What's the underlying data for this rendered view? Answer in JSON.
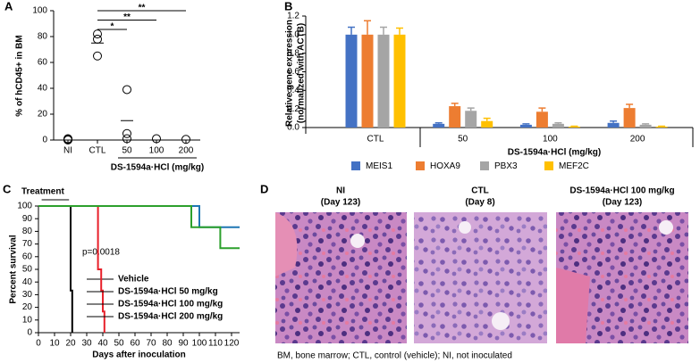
{
  "panel_labels": [
    "A",
    "B",
    "C",
    "D"
  ],
  "chart_data": [
    {
      "type": "dot",
      "y_label": "% of hCD45+ in BM",
      "x_label": "DS-1594a·HCl (mg/kg)",
      "categories": [
        "NI",
        "CTL",
        "50",
        "100",
        "200"
      ],
      "groups": [
        {
          "values": [
            0,
            1,
            0.5
          ]
        },
        {
          "values": [
            82,
            78,
            65
          ],
          "mean": 75
        },
        {
          "values": [
            39,
            5,
            1
          ],
          "mean": 15
        },
        {
          "values": [
            1
          ]
        },
        {
          "values": [
            0.5
          ]
        }
      ],
      "color": "#000000",
      "ylim": [
        0,
        100
      ],
      "yticks": [
        0,
        20,
        40,
        60,
        80,
        100
      ],
      "significance": [
        {
          "from": "CTL",
          "to": "50",
          "label": "*"
        },
        {
          "from": "CTL",
          "to": "100",
          "label": "**"
        },
        {
          "from": "CTL",
          "to": "200",
          "label": "**"
        }
      ]
    },
    {
      "type": "bar",
      "y_label": [
        "Relative gene expression",
        "(normalized with ACTB)"
      ],
      "x_label": "DS-1594a·HCl (mg/kg)",
      "categories": [
        "CTL",
        "50",
        "100",
        "200"
      ],
      "series": [
        {
          "name": "MEIS1",
          "color": "#4472c4",
          "values": [
            1.0,
            0.04,
            0.03,
            0.05
          ],
          "errors": [
            0.08,
            0.01,
            0.01,
            0.02
          ]
        },
        {
          "name": "HOXA9",
          "color": "#ed7d31",
          "values": [
            1.0,
            0.23,
            0.17,
            0.21
          ],
          "errors": [
            0.15,
            0.03,
            0.04,
            0.04
          ]
        },
        {
          "name": "PBX3",
          "color": "#a5a5a5",
          "values": [
            1.0,
            0.18,
            0.04,
            0.03
          ],
          "errors": [
            0.08,
            0.03,
            0.01,
            0.01
          ]
        },
        {
          "name": "MEF2C",
          "color": "#ffc000",
          "values": [
            1.0,
            0.07,
            0.01,
            0.01
          ],
          "errors": [
            0.07,
            0.03,
            0.005,
            0.005
          ]
        }
      ],
      "ylim": [
        0,
        1.2
      ],
      "yticks": [
        {
          "value": 0,
          "label": "0.0"
        },
        0.2,
        0.4,
        0.6,
        0.8,
        {
          "value": 1,
          "label": "1.0"
        },
        1.2
      ]
    },
    {
      "type": "step",
      "y_label": "Percent survival",
      "x_label": "Days after inoculation",
      "treatment": {
        "label": "Treatment",
        "start": 2,
        "end": 19,
        "color": "#ed7d31"
      },
      "annotation": "p=0.0018",
      "series": [
        {
          "name": "Vehicle",
          "color": "#000000",
          "x": [
            0,
            20,
            20,
            21,
            21
          ],
          "values": [
            100,
            100,
            33.3,
            33.3,
            0
          ]
        },
        {
          "name": "DS-1594a·HCl 50 mg/kg",
          "color": "#e8202a",
          "x": [
            0,
            37,
            37,
            39,
            39,
            40,
            40,
            41,
            41
          ],
          "values": [
            100,
            100,
            50,
            50,
            33.3,
            33.3,
            16.7,
            16.7,
            0
          ]
        },
        {
          "name": "DS-1594a·HCl 100 mg/kg",
          "color": "#1f77b4",
          "x": [
            0,
            100,
            100,
            125
          ],
          "values": [
            100,
            100,
            83.3,
            83.3
          ]
        },
        {
          "name": "DS-1594a·HCl 200 mg/kg",
          "color": "#2ca02c",
          "x": [
            0,
            95,
            95,
            113,
            113,
            125
          ],
          "values": [
            100,
            100,
            83.3,
            83.3,
            66.7,
            66.7
          ]
        }
      ],
      "xlim": [
        0,
        125
      ],
      "xticks": [
        0,
        10,
        20,
        30,
        40,
        50,
        60,
        70,
        80,
        90,
        100,
        110,
        120
      ],
      "ylim": [
        0,
        100
      ],
      "yticks": [
        0,
        10,
        20,
        30,
        40,
        50,
        60,
        70,
        80,
        90,
        100
      ]
    }
  ],
  "images": [
    {
      "title": [
        "NI",
        "(Day 123)"
      ]
    },
    {
      "title": [
        "CTL",
        "(Day 8)"
      ]
    },
    {
      "title": [
        "DS-1594a·HCl 100 mg/kg",
        "(Day 123)"
      ]
    }
  ],
  "caption": "BM, bone marrow; CTL, control (vehicle); NI, not inoculated"
}
